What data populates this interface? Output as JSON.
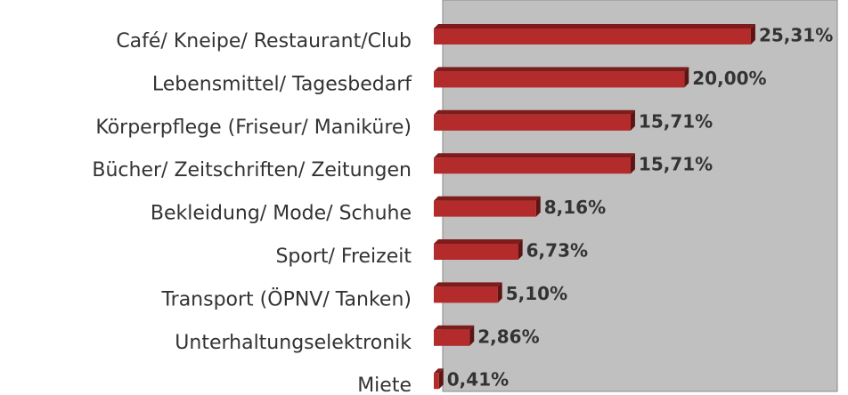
{
  "chart_data": {
    "type": "bar",
    "orientation": "horizontal",
    "categories": [
      "Café/ Kneipe/ Restaurant/Club",
      "Lebensmittel/ Tagesbedarf",
      "Körperpflege (Friseur/ Maniküre)",
      "Bücher/ Zeitschriften/ Zeitungen",
      "Bekleidung/ Mode/ Schuhe",
      "Sport/ Freizeit",
      "Transport (ÖPNV/ Tanken)",
      "Unterhaltungselektronik",
      "Miete"
    ],
    "values": [
      25.31,
      20.0,
      15.71,
      15.71,
      8.16,
      6.73,
      5.1,
      2.86,
      0.41
    ],
    "value_labels": [
      "25,31%",
      "20,00%",
      "15,71%",
      "15,71%",
      "8,16%",
      "6,73%",
      "5,10%",
      "2,86%",
      "0,41%"
    ],
    "color": "#b32b2b",
    "xlim": [
      0,
      31.5
    ]
  }
}
